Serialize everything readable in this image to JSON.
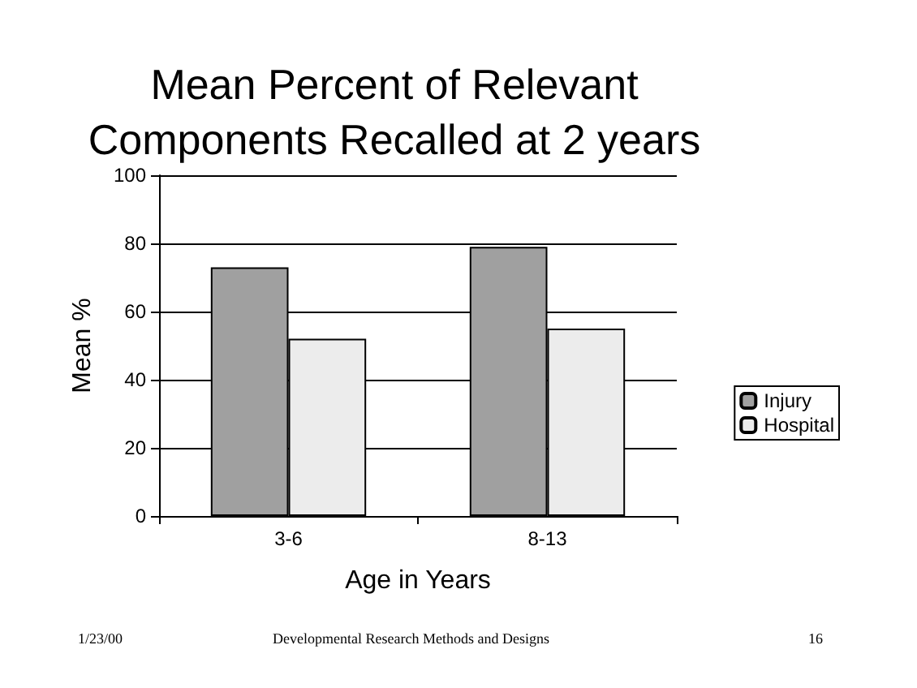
{
  "chart_data": {
    "type": "bar",
    "title": "Mean Percent of Relevant\nComponents Recalled at 2 years",
    "xlabel": "Age in Years",
    "ylabel": "Mean %",
    "categories": [
      "3-6",
      "8-13"
    ],
    "series": [
      {
        "name": "Injury",
        "color": "#a0a0a0",
        "values": [
          73,
          79
        ]
      },
      {
        "name": "Hospital",
        "color": "#ececec",
        "values": [
          52,
          55
        ]
      }
    ],
    "ylim": [
      0,
      100
    ],
    "yticks": [
      0,
      20,
      40,
      60,
      80,
      100
    ],
    "grid": "y",
    "legend": "right",
    "annotations": [
      "1/23/00",
      "Developmental Research Methods and Designs",
      "16"
    ]
  }
}
